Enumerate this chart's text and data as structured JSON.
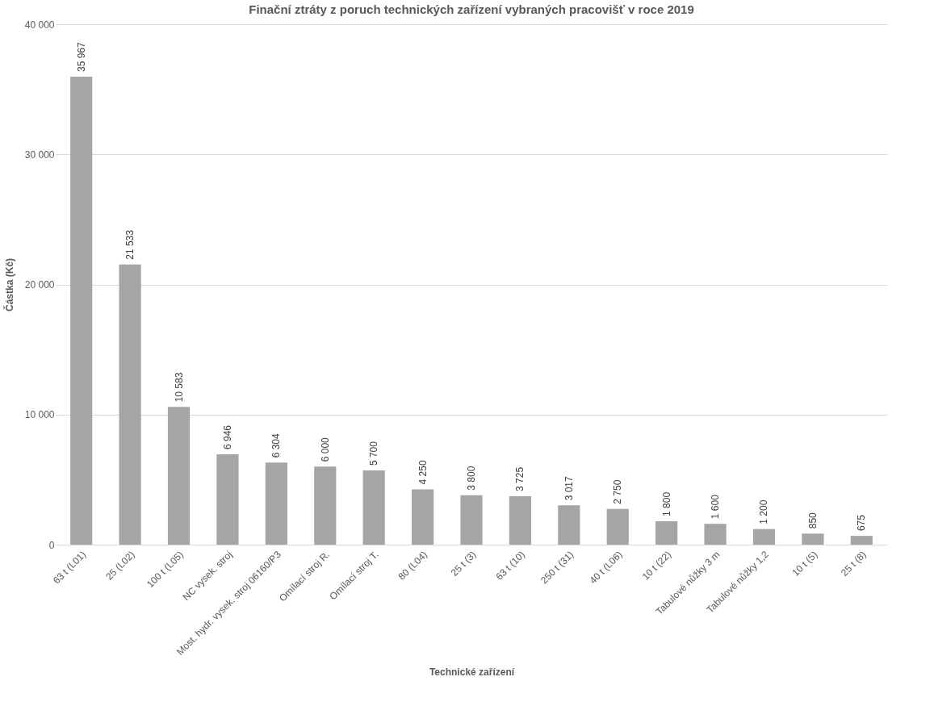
{
  "chart_data": {
    "type": "bar",
    "title": "Finační ztráty z poruch technických zařízení vybraných pracovišť v roce 2019",
    "xlabel": "Technické zařízení",
    "ylabel": "Částka (Kč)",
    "categories": [
      "63 t (L01)",
      "25 (L02)",
      "100 t (L05)",
      "NC vysek. stroj",
      "Most. hydr. vysek. stroj 06160/P3",
      "Omílací stroj R.",
      "Omílací stroj T.",
      "80 (L04)",
      "25 t (3)",
      "63 t (10)",
      "250 t (31)",
      "40 t (L06)",
      "10 t (22)",
      "Tabulové nůžky 3 m",
      "Tabulové nůžky 1,2",
      "10 t (5)",
      "25 t (8)"
    ],
    "values": [
      35967,
      21533,
      10583,
      6946,
      6304,
      6000,
      5700,
      4250,
      3800,
      3725,
      3017,
      2750,
      1800,
      1600,
      1200,
      850,
      675
    ],
    "value_labels": [
      "35 967",
      "21 533",
      "10 583",
      "6 946",
      "6 304",
      "6 000",
      "5 700",
      "4 250",
      "3 800",
      "3 725",
      "3 017",
      "2 750",
      "1 800",
      "1 600",
      "1 200",
      "850",
      "675"
    ],
    "color": "#a5a5a5",
    "ylim": [
      0,
      40000
    ],
    "yticks": [
      0,
      {
        "value": 10000,
        "label": "10 000"
      },
      {
        "value": 20000,
        "label": "20 000"
      },
      {
        "value": 30000,
        "label": "30 000"
      },
      {
        "value": 40000,
        "label": "40 000"
      }
    ],
    "grid": "y"
  }
}
